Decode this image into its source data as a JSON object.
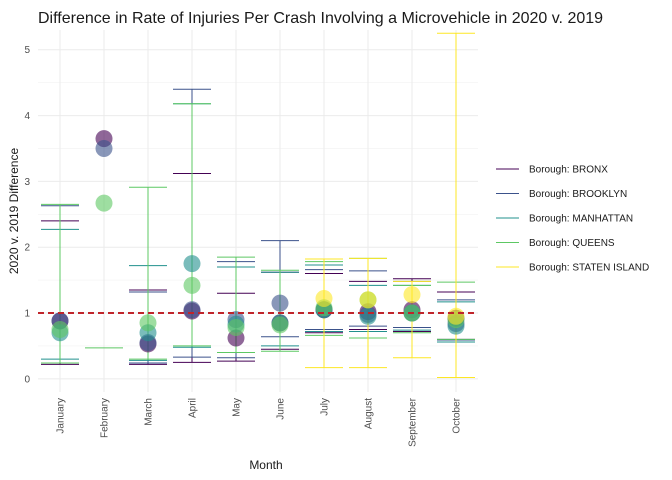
{
  "chart_data": {
    "type": "scatter",
    "title": "Difference in Rate of Injuries Per Crash Involving a Microvehicle in 2020 v. 2019",
    "xlabel": "Month",
    "ylabel": "2020 v. 2019 Difference",
    "categories": [
      "January",
      "February",
      "March",
      "April",
      "May",
      "June",
      "July",
      "August",
      "September",
      "October"
    ],
    "ylim": [
      -0.2,
      5.3
    ],
    "yticks": [
      0,
      1,
      2,
      3,
      4,
      5
    ],
    "grid": true,
    "reference_line": {
      "y": 1,
      "color": "#c0252b",
      "style": "dashed"
    },
    "legend_position": "right",
    "series": [
      {
        "name": "Borough: BRONX",
        "color": "#440154",
        "values": [
          0.88,
          3.65,
          0.53,
          1.03,
          0.62,
          0.85,
          1.05,
          1.02,
          1.05,
          0.92
        ],
        "ci_low": [
          0.22,
          null,
          0.22,
          0.25,
          0.27,
          0.45,
          0.7,
          0.75,
          0.72,
          0.6
        ],
        "ci_high": [
          2.4,
          null,
          1.35,
          3.12,
          1.3,
          1.62,
          1.6,
          1.48,
          1.52,
          1.32
        ]
      },
      {
        "name": "Borough: BROOKLYN",
        "color": "#3b528b",
        "values": [
          0.88,
          3.5,
          0.55,
          1.05,
          0.9,
          1.15,
          1.05,
          0.98,
          1.0,
          0.84
        ],
        "ci_low": [
          0.24,
          null,
          0.24,
          0.33,
          0.32,
          0.64,
          0.75,
          0.8,
          0.78,
          0.59
        ],
        "ci_high": [
          2.63,
          null,
          1.32,
          4.4,
          1.78,
          2.1,
          1.66,
          1.64,
          1.48,
          1.2
        ]
      },
      {
        "name": "Borough: MANHATTAN",
        "color": "#21908d",
        "values": [
          0.7,
          null,
          0.7,
          1.75,
          0.83,
          0.85,
          1.05,
          0.95,
          1.0,
          0.8
        ],
        "ci_low": [
          0.3,
          null,
          0.28,
          0.48,
          0.4,
          0.5,
          0.72,
          0.72,
          0.74,
          0.56
        ],
        "ci_high": [
          2.27,
          null,
          1.72,
          4.18,
          1.7,
          1.62,
          1.73,
          1.42,
          1.42,
          1.17
        ]
      },
      {
        "name": "Borough: QUEENS",
        "color": "#5dc863",
        "values": [
          0.75,
          2.67,
          0.85,
          1.42,
          0.78,
          0.82,
          1.08,
          1.2,
          1.0,
          0.9
        ],
        "ci_low": [
          0.24,
          0.47,
          0.3,
          0.5,
          0.4,
          0.42,
          0.66,
          0.62,
          0.7,
          0.6
        ],
        "ci_high": [
          2.65,
          null,
          2.91,
          4.18,
          1.85,
          1.65,
          1.78,
          1.83,
          1.42,
          1.47
        ]
      },
      {
        "name": "Borough: STATEN ISLAND",
        "color": "#fde725",
        "values": [
          null,
          null,
          null,
          null,
          null,
          null,
          1.22,
          1.2,
          1.28,
          0.95
        ],
        "ci_low": [
          null,
          null,
          null,
          null,
          null,
          null,
          0.17,
          0.17,
          0.32,
          0.02
        ],
        "ci_high": [
          null,
          null,
          null,
          null,
          null,
          null,
          1.82,
          1.83,
          1.48,
          5.25
        ]
      }
    ]
  }
}
